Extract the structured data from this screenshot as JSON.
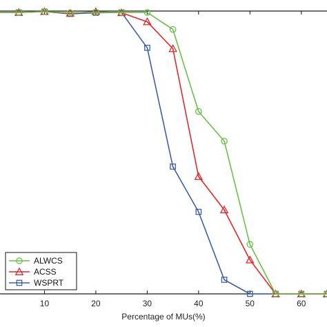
{
  "chart_data": {
    "type": "line",
    "xlabel": "Percentage of MUs(%)",
    "ylabel": "",
    "x": [
      0,
      5,
      10,
      15,
      20,
      25,
      30,
      35,
      40,
      45,
      50,
      55,
      60,
      65
    ],
    "xlim": [
      0,
      65
    ],
    "ylim": [
      0,
      1
    ],
    "xticks": [
      10,
      20,
      30,
      40,
      50,
      60
    ],
    "xtick_labels": [
      "10",
      "20",
      "30",
      "40",
      "50",
      "60"
    ],
    "grid": false,
    "legend_position": "bottom-left",
    "series": [
      {
        "name": "ALWCS",
        "color": "#6abf45",
        "marker": "circle",
        "values": [
          0.995,
          0.995,
          0.998,
          0.994,
          0.996,
          0.995,
          0.995,
          0.935,
          0.645,
          0.54,
          0.175,
          0.0,
          0.0,
          0.0
        ]
      },
      {
        "name": "ACSS",
        "color": "#e2262b",
        "marker": "triangle",
        "values": [
          0.995,
          0.995,
          0.998,
          0.992,
          0.998,
          0.994,
          0.962,
          0.867,
          0.415,
          0.297,
          0.12,
          0.0,
          0.0,
          0.0
        ]
      },
      {
        "name": "WSPRT",
        "color": "#3a5ea8",
        "marker": "square",
        "values": [
          0.995,
          0.995,
          0.998,
          0.99,
          0.994,
          0.995,
          0.87,
          0.45,
          0.29,
          0.05,
          0.0,
          0.0,
          0.0,
          0.0
        ]
      }
    ]
  }
}
